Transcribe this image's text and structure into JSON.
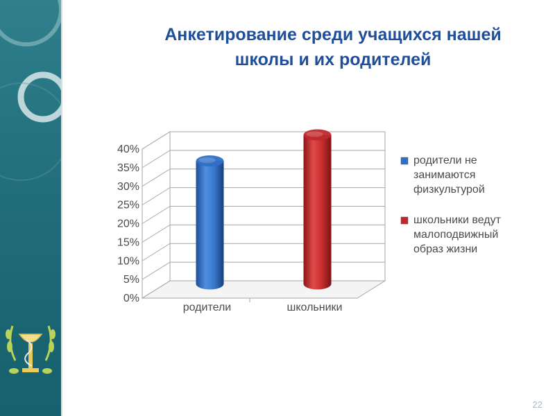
{
  "slide": {
    "title": "Анкетирование среди учащихся нашей школы и их родителей",
    "page_number": "22"
  },
  "icons": [
    "sidebar-circles-decoration",
    "chalice-laurel-emblem"
  ],
  "colors": {
    "sidebar": "#1f6b78",
    "title": "#1f4e9a",
    "series_blue": "#2f6fc4",
    "series_red": "#c0282c"
  },
  "chart_data": {
    "type": "bar",
    "style": "3d-cylinder",
    "categories": [
      "родители",
      "школьники"
    ],
    "series": [
      {
        "name": "родители не занимаются физкультурой",
        "color": "#2f6fc4",
        "values": [
          33,
          null
        ]
      },
      {
        "name": "школьники ведут малоподвижный образ жизни",
        "color": "#c0282c",
        "values": [
          null,
          40
        ]
      }
    ],
    "y_ticks": [
      "0%",
      "5%",
      "10%",
      "15%",
      "20%",
      "25%",
      "30%",
      "35%",
      "40%"
    ],
    "ylim": [
      0,
      40
    ],
    "grid": true,
    "legend": "right",
    "legend_lines": [
      [
        "родители не",
        "занимаются",
        "физкультурой"
      ],
      [
        "школьники ведут",
        "малоподвижный",
        "образ жизни"
      ]
    ]
  }
}
